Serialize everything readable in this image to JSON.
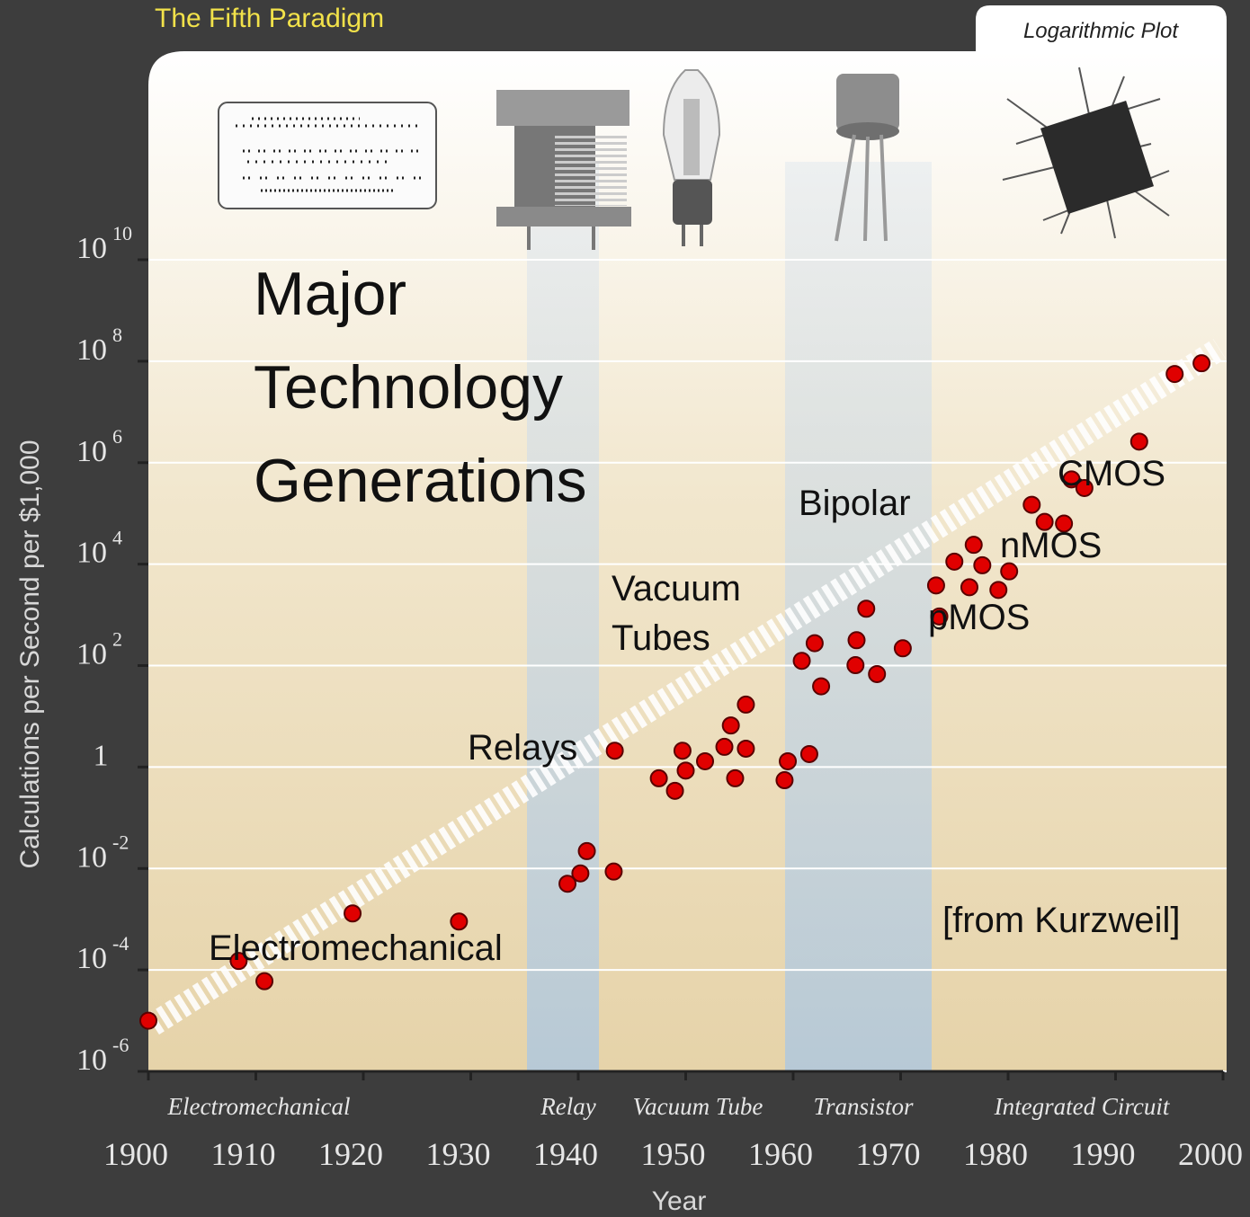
{
  "chart_data": {
    "type": "scatter",
    "title": "The Fifth Paradigm",
    "subtitle": "Logarithmic Plot",
    "headline": [
      "Major",
      "Technology",
      "Generations"
    ],
    "x_label": "Year",
    "y_label": "Calculations per Second per $1,000",
    "log_y": true,
    "grid": true,
    "color": "#e00000",
    "xlim": [
      1900,
      2000
    ],
    "xticks": [
      1900,
      1910,
      1920,
      1930,
      1940,
      1950,
      1960,
      1970,
      1980,
      1990,
      2000
    ],
    "ylim": [
      1e-06,
      10000000000
    ],
    "yticks": [
      {
        "value": 10000000000,
        "label": "10",
        "exponent": "10"
      },
      {
        "value": 100000000,
        "label": "10",
        "exponent": "8"
      },
      {
        "value": 1000000,
        "label": "10",
        "exponent": "6"
      },
      {
        "value": 10000,
        "label": "10",
        "exponent": "4"
      },
      {
        "value": 100,
        "label": "10",
        "exponent": "2"
      },
      1,
      {
        "value": 0.01,
        "label": "10",
        "exponent": "-2"
      },
      {
        "value": 0.0001,
        "label": "10",
        "exponent": "-4"
      },
      {
        "value": 1e-06,
        "label": "10",
        "exponent": "-6"
      }
    ],
    "eras": [
      "Electromechanical",
      "Relay",
      "Vacuum Tube",
      "Transistor",
      "Integrated Circuit"
    ],
    "annotations": [
      "Electromechanical",
      "Relays",
      "Vacuum",
      "Tubes",
      "Bipolar",
      "pMOS",
      "nMOS",
      "CMOS",
      "[from Kurzweil]"
    ],
    "x": [
      1900,
      1908.4,
      1910.8,
      1919,
      1928.9,
      1939,
      1940.2,
      1940.8,
      1943.3,
      1943.4,
      1947.5,
      1949,
      1949.7,
      1950,
      1951.8,
      1953.6,
      1954.2,
      1954.6,
      1955.6,
      1955.6,
      1959.2,
      1959.5,
      1961.5,
      1960.8,
      1962,
      1962.6,
      1965.8,
      1965.9,
      1966.8,
      1967.8,
      1970.2,
      1973.3,
      1973.6,
      1975,
      1976.4,
      1976.8,
      1977.6,
      1979.1,
      1980.1,
      1982.2,
      1983.4,
      1985.2,
      1985.9,
      1987.1,
      1992.2,
      1995.5,
      1998
    ],
    "values": [
      1e-05,
      0.00015,
      6e-05,
      0.0013,
      0.0009,
      0.005,
      0.008,
      0.022,
      0.0087,
      2.1,
      0.6,
      0.34,
      2.1,
      0.85,
      1.3,
      2.5,
      6.6,
      0.6,
      17,
      2.3,
      0.55,
      1.3,
      1.8,
      124,
      276,
      39,
      102,
      316,
      1320,
      68,
      219,
      3800,
      930,
      11200,
      3500,
      24000,
      9500,
      3100,
      7200,
      148000,
      68000,
      63000,
      468000,
      316000,
      2600000,
      56000000,
      91000000
    ]
  }
}
